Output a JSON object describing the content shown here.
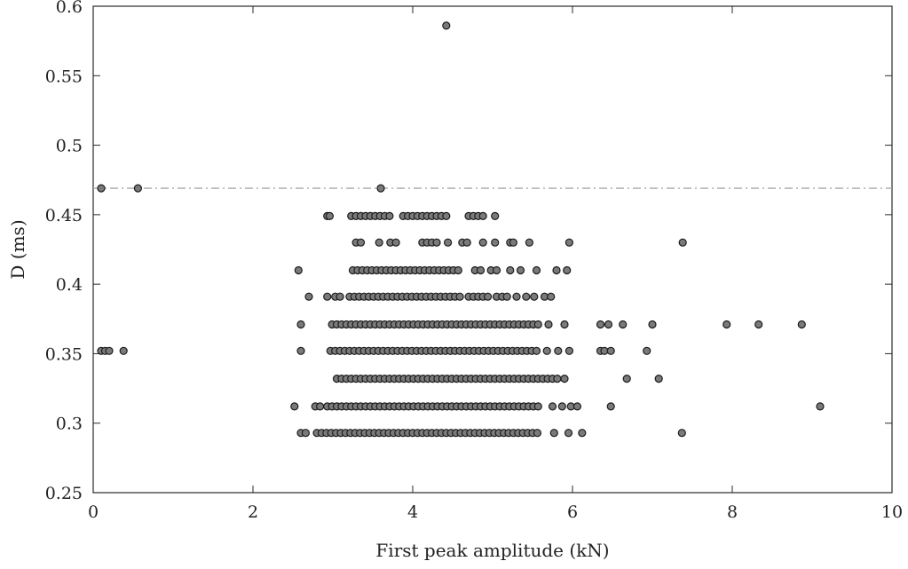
{
  "chart_data": {
    "type": "scatter",
    "title": "",
    "xlabel": "First peak amplitude (kN)",
    "ylabel": "D (ms)",
    "xlim": [
      0,
      10
    ],
    "ylim": [
      0.25,
      0.6
    ],
    "xticks": [
      0,
      2,
      4,
      6,
      8,
      10
    ],
    "yticks": [
      0.25,
      0.3,
      0.35,
      0.4,
      0.45,
      0.5,
      0.55,
      0.6
    ],
    "xtick_labels": [
      "0",
      "2",
      "4",
      "6",
      "8",
      "10"
    ],
    "ytick_labels": [
      "0.25",
      "0.3",
      "0.35",
      "0.4",
      "0.45",
      "0.5",
      "0.55",
      "0.6"
    ],
    "grid": false,
    "legend": false,
    "reference_line": {
      "y": 0.469,
      "style": "dash-dot",
      "color": "#a8a8a8"
    },
    "marker": {
      "fill": "#7a7a7a",
      "edge": "#1c1c1c"
    },
    "points": [
      [
        4.42,
        0.586
      ],
      [
        0.1,
        0.469
      ],
      [
        0.56,
        0.469
      ],
      [
        3.6,
        0.469
      ],
      [
        0.1,
        0.352
      ],
      [
        0.15,
        0.352
      ],
      [
        0.2,
        0.352
      ],
      [
        0.38,
        0.352
      ],
      [
        2.93,
        0.449
      ],
      [
        2.96,
        0.449
      ],
      [
        3.23,
        0.449
      ],
      [
        3.29,
        0.449
      ],
      [
        3.35,
        0.449
      ],
      [
        3.41,
        0.449
      ],
      [
        3.47,
        0.449
      ],
      [
        3.53,
        0.449
      ],
      [
        3.59,
        0.449
      ],
      [
        3.65,
        0.449
      ],
      [
        3.71,
        0.449
      ],
      [
        3.88,
        0.449
      ],
      [
        3.94,
        0.449
      ],
      [
        4.0,
        0.449
      ],
      [
        4.06,
        0.449
      ],
      [
        4.12,
        0.449
      ],
      [
        4.18,
        0.449
      ],
      [
        4.24,
        0.449
      ],
      [
        4.3,
        0.449
      ],
      [
        4.36,
        0.449
      ],
      [
        4.42,
        0.449
      ],
      [
        4.7,
        0.449
      ],
      [
        4.76,
        0.449
      ],
      [
        4.82,
        0.449
      ],
      [
        4.88,
        0.449
      ],
      [
        5.03,
        0.449
      ],
      [
        3.29,
        0.43
      ],
      [
        3.35,
        0.43
      ],
      [
        3.58,
        0.43
      ],
      [
        3.72,
        0.43
      ],
      [
        3.79,
        0.43
      ],
      [
        4.12,
        0.43
      ],
      [
        4.18,
        0.43
      ],
      [
        4.24,
        0.43
      ],
      [
        4.3,
        0.43
      ],
      [
        4.44,
        0.43
      ],
      [
        4.62,
        0.43
      ],
      [
        4.68,
        0.43
      ],
      [
        4.88,
        0.43
      ],
      [
        5.03,
        0.43
      ],
      [
        5.22,
        0.43
      ],
      [
        5.26,
        0.43
      ],
      [
        5.46,
        0.43
      ],
      [
        5.96,
        0.43
      ],
      [
        7.38,
        0.43
      ],
      [
        2.57,
        0.41
      ],
      [
        3.25,
        0.41
      ],
      [
        3.31,
        0.41
      ],
      [
        3.37,
        0.41
      ],
      [
        3.43,
        0.41
      ],
      [
        3.49,
        0.41
      ],
      [
        3.55,
        0.41
      ],
      [
        3.61,
        0.41
      ],
      [
        3.67,
        0.41
      ],
      [
        3.73,
        0.41
      ],
      [
        3.79,
        0.41
      ],
      [
        3.85,
        0.41
      ],
      [
        3.91,
        0.41
      ],
      [
        3.97,
        0.41
      ],
      [
        4.03,
        0.41
      ],
      [
        4.09,
        0.41
      ],
      [
        4.15,
        0.41
      ],
      [
        4.21,
        0.41
      ],
      [
        4.27,
        0.41
      ],
      [
        4.33,
        0.41
      ],
      [
        4.39,
        0.41
      ],
      [
        4.45,
        0.41
      ],
      [
        4.51,
        0.41
      ],
      [
        4.57,
        0.41
      ],
      [
        4.78,
        0.41
      ],
      [
        4.85,
        0.41
      ],
      [
        4.98,
        0.41
      ],
      [
        5.05,
        0.41
      ],
      [
        5.22,
        0.41
      ],
      [
        5.35,
        0.41
      ],
      [
        5.55,
        0.41
      ],
      [
        5.8,
        0.41
      ],
      [
        5.93,
        0.41
      ],
      [
        2.7,
        0.391
      ],
      [
        2.93,
        0.391
      ],
      [
        3.03,
        0.391
      ],
      [
        3.09,
        0.391
      ],
      [
        3.21,
        0.391
      ],
      [
        3.27,
        0.391
      ],
      [
        3.33,
        0.391
      ],
      [
        3.39,
        0.391
      ],
      [
        3.45,
        0.391
      ],
      [
        3.51,
        0.391
      ],
      [
        3.57,
        0.391
      ],
      [
        3.63,
        0.391
      ],
      [
        3.69,
        0.391
      ],
      [
        3.75,
        0.391
      ],
      [
        3.81,
        0.391
      ],
      [
        3.87,
        0.391
      ],
      [
        3.93,
        0.391
      ],
      [
        3.99,
        0.391
      ],
      [
        4.05,
        0.391
      ],
      [
        4.11,
        0.391
      ],
      [
        4.17,
        0.391
      ],
      [
        4.23,
        0.391
      ],
      [
        4.29,
        0.391
      ],
      [
        4.35,
        0.391
      ],
      [
        4.41,
        0.391
      ],
      [
        4.47,
        0.391
      ],
      [
        4.53,
        0.391
      ],
      [
        4.59,
        0.391
      ],
      [
        4.7,
        0.391
      ],
      [
        4.76,
        0.391
      ],
      [
        4.82,
        0.391
      ],
      [
        4.88,
        0.391
      ],
      [
        4.94,
        0.391
      ],
      [
        5.05,
        0.391
      ],
      [
        5.12,
        0.391
      ],
      [
        5.18,
        0.391
      ],
      [
        5.3,
        0.391
      ],
      [
        5.42,
        0.391
      ],
      [
        5.52,
        0.391
      ],
      [
        5.65,
        0.391
      ],
      [
        5.73,
        0.391
      ],
      [
        2.6,
        0.371
      ],
      [
        2.99,
        0.371
      ],
      [
        3.05,
        0.371
      ],
      [
        3.11,
        0.371
      ],
      [
        3.17,
        0.371
      ],
      [
        3.23,
        0.371
      ],
      [
        3.29,
        0.371
      ],
      [
        3.35,
        0.371
      ],
      [
        3.41,
        0.371
      ],
      [
        3.47,
        0.371
      ],
      [
        3.53,
        0.371
      ],
      [
        3.59,
        0.371
      ],
      [
        3.65,
        0.371
      ],
      [
        3.71,
        0.371
      ],
      [
        3.77,
        0.371
      ],
      [
        3.83,
        0.371
      ],
      [
        3.89,
        0.371
      ],
      [
        3.95,
        0.371
      ],
      [
        4.01,
        0.371
      ],
      [
        4.07,
        0.371
      ],
      [
        4.13,
        0.371
      ],
      [
        4.19,
        0.371
      ],
      [
        4.25,
        0.371
      ],
      [
        4.31,
        0.371
      ],
      [
        4.37,
        0.371
      ],
      [
        4.43,
        0.371
      ],
      [
        4.49,
        0.371
      ],
      [
        4.55,
        0.371
      ],
      [
        4.61,
        0.371
      ],
      [
        4.67,
        0.371
      ],
      [
        4.73,
        0.371
      ],
      [
        4.79,
        0.371
      ],
      [
        4.85,
        0.371
      ],
      [
        4.91,
        0.371
      ],
      [
        4.97,
        0.371
      ],
      [
        5.03,
        0.371
      ],
      [
        5.09,
        0.371
      ],
      [
        5.15,
        0.371
      ],
      [
        5.21,
        0.371
      ],
      [
        5.27,
        0.371
      ],
      [
        5.33,
        0.371
      ],
      [
        5.39,
        0.371
      ],
      [
        5.45,
        0.371
      ],
      [
        5.51,
        0.371
      ],
      [
        5.57,
        0.371
      ],
      [
        5.7,
        0.371
      ],
      [
        5.9,
        0.371
      ],
      [
        6.35,
        0.371
      ],
      [
        6.45,
        0.371
      ],
      [
        6.63,
        0.371
      ],
      [
        7.0,
        0.371
      ],
      [
        7.93,
        0.371
      ],
      [
        8.33,
        0.371
      ],
      [
        8.87,
        0.371
      ],
      [
        2.6,
        0.352
      ],
      [
        2.97,
        0.352
      ],
      [
        3.03,
        0.352
      ],
      [
        3.09,
        0.352
      ],
      [
        3.15,
        0.352
      ],
      [
        3.21,
        0.352
      ],
      [
        3.27,
        0.352
      ],
      [
        3.33,
        0.352
      ],
      [
        3.39,
        0.352
      ],
      [
        3.45,
        0.352
      ],
      [
        3.51,
        0.352
      ],
      [
        3.57,
        0.352
      ],
      [
        3.63,
        0.352
      ],
      [
        3.69,
        0.352
      ],
      [
        3.75,
        0.352
      ],
      [
        3.81,
        0.352
      ],
      [
        3.87,
        0.352
      ],
      [
        3.93,
        0.352
      ],
      [
        3.99,
        0.352
      ],
      [
        4.05,
        0.352
      ],
      [
        4.11,
        0.352
      ],
      [
        4.17,
        0.352
      ],
      [
        4.23,
        0.352
      ],
      [
        4.29,
        0.352
      ],
      [
        4.35,
        0.352
      ],
      [
        4.41,
        0.352
      ],
      [
        4.47,
        0.352
      ],
      [
        4.53,
        0.352
      ],
      [
        4.59,
        0.352
      ],
      [
        4.65,
        0.352
      ],
      [
        4.71,
        0.352
      ],
      [
        4.77,
        0.352
      ],
      [
        4.83,
        0.352
      ],
      [
        4.89,
        0.352
      ],
      [
        4.95,
        0.352
      ],
      [
        5.01,
        0.352
      ],
      [
        5.07,
        0.352
      ],
      [
        5.13,
        0.352
      ],
      [
        5.19,
        0.352
      ],
      [
        5.25,
        0.352
      ],
      [
        5.31,
        0.352
      ],
      [
        5.37,
        0.352
      ],
      [
        5.43,
        0.352
      ],
      [
        5.49,
        0.352
      ],
      [
        5.55,
        0.352
      ],
      [
        5.68,
        0.352
      ],
      [
        5.82,
        0.352
      ],
      [
        5.96,
        0.352
      ],
      [
        6.35,
        0.352
      ],
      [
        6.4,
        0.352
      ],
      [
        6.48,
        0.352
      ],
      [
        6.93,
        0.352
      ],
      [
        3.05,
        0.332
      ],
      [
        3.11,
        0.332
      ],
      [
        3.17,
        0.332
      ],
      [
        3.23,
        0.332
      ],
      [
        3.29,
        0.332
      ],
      [
        3.35,
        0.332
      ],
      [
        3.41,
        0.332
      ],
      [
        3.47,
        0.332
      ],
      [
        3.53,
        0.332
      ],
      [
        3.59,
        0.332
      ],
      [
        3.65,
        0.332
      ],
      [
        3.71,
        0.332
      ],
      [
        3.77,
        0.332
      ],
      [
        3.83,
        0.332
      ],
      [
        3.89,
        0.332
      ],
      [
        3.95,
        0.332
      ],
      [
        4.01,
        0.332
      ],
      [
        4.07,
        0.332
      ],
      [
        4.13,
        0.332
      ],
      [
        4.19,
        0.332
      ],
      [
        4.25,
        0.332
      ],
      [
        4.31,
        0.332
      ],
      [
        4.37,
        0.332
      ],
      [
        4.43,
        0.332
      ],
      [
        4.49,
        0.332
      ],
      [
        4.55,
        0.332
      ],
      [
        4.61,
        0.332
      ],
      [
        4.67,
        0.332
      ],
      [
        4.73,
        0.332
      ],
      [
        4.79,
        0.332
      ],
      [
        4.85,
        0.332
      ],
      [
        4.91,
        0.332
      ],
      [
        4.97,
        0.332
      ],
      [
        5.03,
        0.332
      ],
      [
        5.09,
        0.332
      ],
      [
        5.15,
        0.332
      ],
      [
        5.21,
        0.332
      ],
      [
        5.27,
        0.332
      ],
      [
        5.33,
        0.332
      ],
      [
        5.39,
        0.332
      ],
      [
        5.45,
        0.332
      ],
      [
        5.51,
        0.332
      ],
      [
        5.57,
        0.332
      ],
      [
        5.63,
        0.332
      ],
      [
        5.69,
        0.332
      ],
      [
        5.75,
        0.332
      ],
      [
        5.81,
        0.332
      ],
      [
        5.9,
        0.332
      ],
      [
        6.68,
        0.332
      ],
      [
        7.08,
        0.332
      ],
      [
        2.52,
        0.312
      ],
      [
        2.78,
        0.312
      ],
      [
        2.84,
        0.312
      ],
      [
        2.93,
        0.312
      ],
      [
        2.99,
        0.312
      ],
      [
        3.05,
        0.312
      ],
      [
        3.11,
        0.312
      ],
      [
        3.17,
        0.312
      ],
      [
        3.23,
        0.312
      ],
      [
        3.29,
        0.312
      ],
      [
        3.35,
        0.312
      ],
      [
        3.41,
        0.312
      ],
      [
        3.47,
        0.312
      ],
      [
        3.53,
        0.312
      ],
      [
        3.59,
        0.312
      ],
      [
        3.65,
        0.312
      ],
      [
        3.71,
        0.312
      ],
      [
        3.77,
        0.312
      ],
      [
        3.83,
        0.312
      ],
      [
        3.89,
        0.312
      ],
      [
        3.95,
        0.312
      ],
      [
        4.01,
        0.312
      ],
      [
        4.07,
        0.312
      ],
      [
        4.13,
        0.312
      ],
      [
        4.19,
        0.312
      ],
      [
        4.25,
        0.312
      ],
      [
        4.31,
        0.312
      ],
      [
        4.37,
        0.312
      ],
      [
        4.43,
        0.312
      ],
      [
        4.49,
        0.312
      ],
      [
        4.55,
        0.312
      ],
      [
        4.61,
        0.312
      ],
      [
        4.67,
        0.312
      ],
      [
        4.73,
        0.312
      ],
      [
        4.79,
        0.312
      ],
      [
        4.85,
        0.312
      ],
      [
        4.91,
        0.312
      ],
      [
        4.97,
        0.312
      ],
      [
        5.03,
        0.312
      ],
      [
        5.09,
        0.312
      ],
      [
        5.15,
        0.312
      ],
      [
        5.21,
        0.312
      ],
      [
        5.27,
        0.312
      ],
      [
        5.33,
        0.312
      ],
      [
        5.39,
        0.312
      ],
      [
        5.45,
        0.312
      ],
      [
        5.51,
        0.312
      ],
      [
        5.57,
        0.312
      ],
      [
        5.75,
        0.312
      ],
      [
        5.87,
        0.312
      ],
      [
        5.98,
        0.312
      ],
      [
        6.06,
        0.312
      ],
      [
        6.48,
        0.312
      ],
      [
        9.1,
        0.312
      ],
      [
        2.6,
        0.293
      ],
      [
        2.66,
        0.293
      ],
      [
        2.8,
        0.293
      ],
      [
        2.86,
        0.293
      ],
      [
        2.92,
        0.293
      ],
      [
        2.98,
        0.293
      ],
      [
        3.04,
        0.293
      ],
      [
        3.1,
        0.293
      ],
      [
        3.16,
        0.293
      ],
      [
        3.22,
        0.293
      ],
      [
        3.28,
        0.293
      ],
      [
        3.34,
        0.293
      ],
      [
        3.4,
        0.293
      ],
      [
        3.46,
        0.293
      ],
      [
        3.52,
        0.293
      ],
      [
        3.58,
        0.293
      ],
      [
        3.64,
        0.293
      ],
      [
        3.7,
        0.293
      ],
      [
        3.76,
        0.293
      ],
      [
        3.82,
        0.293
      ],
      [
        3.88,
        0.293
      ],
      [
        3.94,
        0.293
      ],
      [
        4.0,
        0.293
      ],
      [
        4.06,
        0.293
      ],
      [
        4.12,
        0.293
      ],
      [
        4.18,
        0.293
      ],
      [
        4.24,
        0.293
      ],
      [
        4.3,
        0.293
      ],
      [
        4.36,
        0.293
      ],
      [
        4.42,
        0.293
      ],
      [
        4.48,
        0.293
      ],
      [
        4.54,
        0.293
      ],
      [
        4.6,
        0.293
      ],
      [
        4.66,
        0.293
      ],
      [
        4.72,
        0.293
      ],
      [
        4.78,
        0.293
      ],
      [
        4.84,
        0.293
      ],
      [
        4.9,
        0.293
      ],
      [
        4.96,
        0.293
      ],
      [
        5.02,
        0.293
      ],
      [
        5.08,
        0.293
      ],
      [
        5.14,
        0.293
      ],
      [
        5.2,
        0.293
      ],
      [
        5.26,
        0.293
      ],
      [
        5.32,
        0.293
      ],
      [
        5.38,
        0.293
      ],
      [
        5.44,
        0.293
      ],
      [
        5.5,
        0.293
      ],
      [
        5.56,
        0.293
      ],
      [
        5.77,
        0.293
      ],
      [
        5.95,
        0.293
      ],
      [
        6.12,
        0.293
      ],
      [
        7.37,
        0.293
      ]
    ]
  }
}
